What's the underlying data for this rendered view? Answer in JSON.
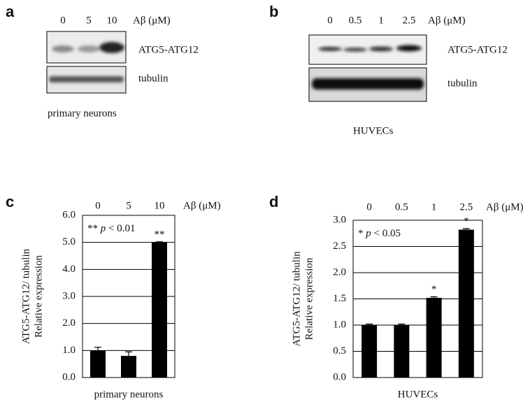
{
  "blots": [
    {
      "label": "a",
      "lanes": [
        "0",
        "5",
        "10"
      ],
      "unit": "Aβ (μM)",
      "bands": [
        "ATG5-ATG12",
        "tubulin"
      ],
      "caption": "primary neurons"
    },
    {
      "label": "b",
      "lanes": [
        "0",
        "0.5",
        "1",
        "2.5"
      ],
      "unit": "Aβ (μM)",
      "bands": [
        "ATG5-ATG12",
        "tubulin"
      ],
      "caption": "HUVECs"
    }
  ],
  "chart_data": [
    {
      "type": "bar",
      "label": "c",
      "categories": [
        "0",
        "5",
        "10"
      ],
      "unit": "Aβ (μM)",
      "values": [
        1.0,
        0.8,
        5.0
      ],
      "errors": [
        0.12,
        0.15,
        0.02
      ],
      "significance": [
        null,
        null,
        "**"
      ],
      "annotation": [
        "**",
        "p",
        "< 0.01"
      ],
      "ylabel": [
        "ATG5-ATG12/ tubulin",
        "Relative expression"
      ],
      "xlabel": "primary neurons",
      "color": "#000000",
      "grid": true,
      "ylim": [
        0,
        6
      ],
      "yticks": [
        {
          "value": 0,
          "label": "0.0"
        },
        {
          "value": 1,
          "label": "1.0"
        },
        {
          "value": 2,
          "label": "2.0"
        },
        {
          "value": 3,
          "label": "3.0"
        },
        {
          "value": 4,
          "label": "4.0"
        },
        {
          "value": 5,
          "label": "5.0"
        },
        {
          "value": 6,
          "label": "6.0"
        }
      ]
    },
    {
      "type": "bar",
      "label": "d",
      "categories": [
        "0",
        "0.5",
        "1",
        "2.5"
      ],
      "unit": "Aβ (μM)",
      "values": [
        1.0,
        1.0,
        1.52,
        2.82
      ],
      "errors": [
        0.02,
        0.02,
        0.02,
        0.02
      ],
      "significance": [
        null,
        null,
        "*",
        "*"
      ],
      "annotation": [
        "*",
        "p",
        "< 0.05"
      ],
      "ylabel": [
        "ATG5-ATG12/ tubulin",
        "Relative expression"
      ],
      "xlabel": "HUVECs",
      "color": "#000000",
      "grid": true,
      "ylim": [
        0,
        3
      ],
      "yticks": [
        {
          "value": 0,
          "label": "0.0"
        },
        {
          "value": 0.5,
          "label": "0.5"
        },
        {
          "value": 1,
          "label": "1.0"
        },
        {
          "value": 1.5,
          "label": "1.5"
        },
        {
          "value": 2,
          "label": "2.0"
        },
        {
          "value": 2.5,
          "label": "2.5"
        },
        {
          "value": 3,
          "label": "3.0"
        }
      ]
    }
  ]
}
